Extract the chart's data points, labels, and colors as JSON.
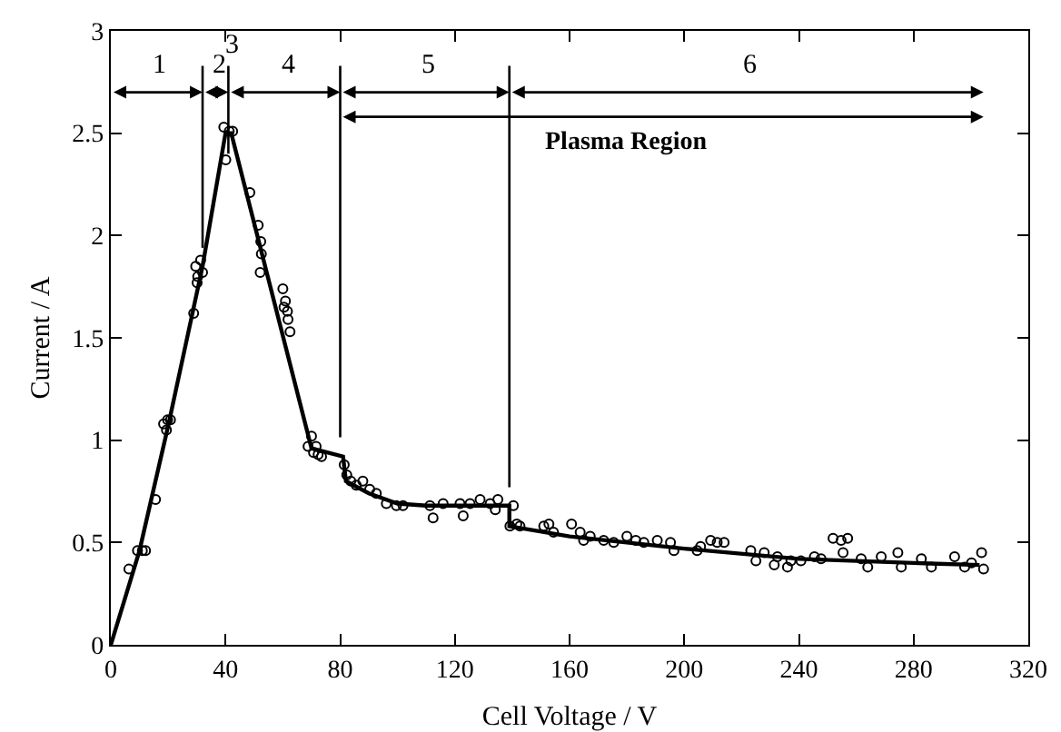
{
  "chart_data": {
    "type": "scatter",
    "xlabel": "Cell Voltage / V",
    "ylabel": "Current / A",
    "xlim": [
      0,
      320
    ],
    "xticks": [
      0,
      40,
      80,
      120,
      160,
      200,
      240,
      280,
      320
    ],
    "ylim": [
      0,
      3
    ],
    "yticks": [
      0,
      0.5,
      1,
      1.5,
      2,
      2.5,
      3
    ],
    "grid": false,
    "marker": "circle",
    "series": [
      {
        "color": "#000000",
        "x": [
          6.3,
          9.3,
          11,
          12.1,
          15.6,
          18.4,
          19.8,
          20.8,
          19.4,
          28.9,
          29.6,
          30.1,
          30.3,
          31.3,
          32,
          39.4,
          40.1,
          41.3,
          42.5,
          48.5,
          51.4,
          52.3,
          52.5,
          52.1,
          60,
          60.9,
          61.6,
          61.8,
          62.5,
          60.4,
          68.8,
          70,
          70.7,
          72.3,
          73.5,
          71.6,
          81.4,
          82.3,
          83.7,
          85.6,
          87.9,
          90.3,
          92.6,
          96.1,
          99.6,
          101.9,
          111.3,
          112.4,
          115.9,
          121.8,
          122.9,
          125.3,
          128.8,
          132.3,
          134.1,
          135,
          140.4,
          139.2,
          141.6,
          142.7,
          151,
          152.8,
          154.4,
          160.7,
          163.7,
          164.9,
          167.2,
          171.9,
          175.4,
          180,
          183.1,
          185.9,
          190.6,
          195.2,
          196.4,
          204.5,
          209.2,
          211.5,
          213.9,
          205.7,
          223.2,
          225,
          227.9,
          231.4,
          232.5,
          236,
          237.2,
          240.7,
          245.4,
          247.7,
          251.9,
          254.7,
          257,
          255.4,
          261.7,
          264,
          268.7,
          274.5,
          275.7,
          282.7,
          286.2,
          294.3,
          297.8,
          300.2,
          303.7,
          304.4
        ],
        "values": [
          0.37,
          0.46,
          0.46,
          0.46,
          0.71,
          1.08,
          1.1,
          1.1,
          1.05,
          1.62,
          1.85,
          1.77,
          1.8,
          1.88,
          1.82,
          2.53,
          2.37,
          2.51,
          2.51,
          2.21,
          2.05,
          1.97,
          1.91,
          1.82,
          1.74,
          1.68,
          1.63,
          1.59,
          1.53,
          1.65,
          0.97,
          1.02,
          0.94,
          0.93,
          0.92,
          0.97,
          0.88,
          0.83,
          0.8,
          0.78,
          0.8,
          0.76,
          0.74,
          0.69,
          0.68,
          0.68,
          0.68,
          0.62,
          0.69,
          0.69,
          0.63,
          0.69,
          0.71,
          0.69,
          0.66,
          0.71,
          0.68,
          0.58,
          0.59,
          0.58,
          0.58,
          0.59,
          0.55,
          0.59,
          0.55,
          0.51,
          0.53,
          0.51,
          0.5,
          0.53,
          0.51,
          0.5,
          0.51,
          0.5,
          0.46,
          0.46,
          0.51,
          0.5,
          0.5,
          0.48,
          0.46,
          0.41,
          0.45,
          0.39,
          0.43,
          0.38,
          0.41,
          0.41,
          0.43,
          0.42,
          0.52,
          0.51,
          0.52,
          0.45,
          0.42,
          0.38,
          0.43,
          0.45,
          0.38,
          0.42,
          0.38,
          0.43,
          0.38,
          0.4,
          0.45,
          0.37
        ]
      },
      {
        "type": "line",
        "color": "#000000",
        "marker": "none",
        "line_style": "solid",
        "x": [
          0,
          10,
          20,
          32,
          40,
          42,
          70,
          81,
          82,
          90,
          100,
          110,
          139,
          139,
          160,
          200,
          240,
          280,
          303
        ],
        "values": [
          0,
          0.46,
          1.07,
          1.85,
          2.5,
          2.5,
          0.96,
          0.92,
          0.8,
          0.74,
          0.69,
          0.68,
          0.68,
          0.58,
          0.53,
          0.47,
          0.42,
          0.4,
          0.39
        ]
      }
    ],
    "ref_lines": [
      {
        "axis": "x",
        "value": 32,
        "color": "#000000"
      },
      {
        "axis": "x",
        "value": 41,
        "color": "#000000"
      },
      {
        "axis": "x",
        "value": 80,
        "color": "#000000"
      },
      {
        "axis": "x",
        "value": 139,
        "color": "#000000"
      }
    ],
    "annotations": [
      "1",
      "2",
      "3",
      "4",
      "5",
      "6",
      "Plasma Region"
    ]
  }
}
